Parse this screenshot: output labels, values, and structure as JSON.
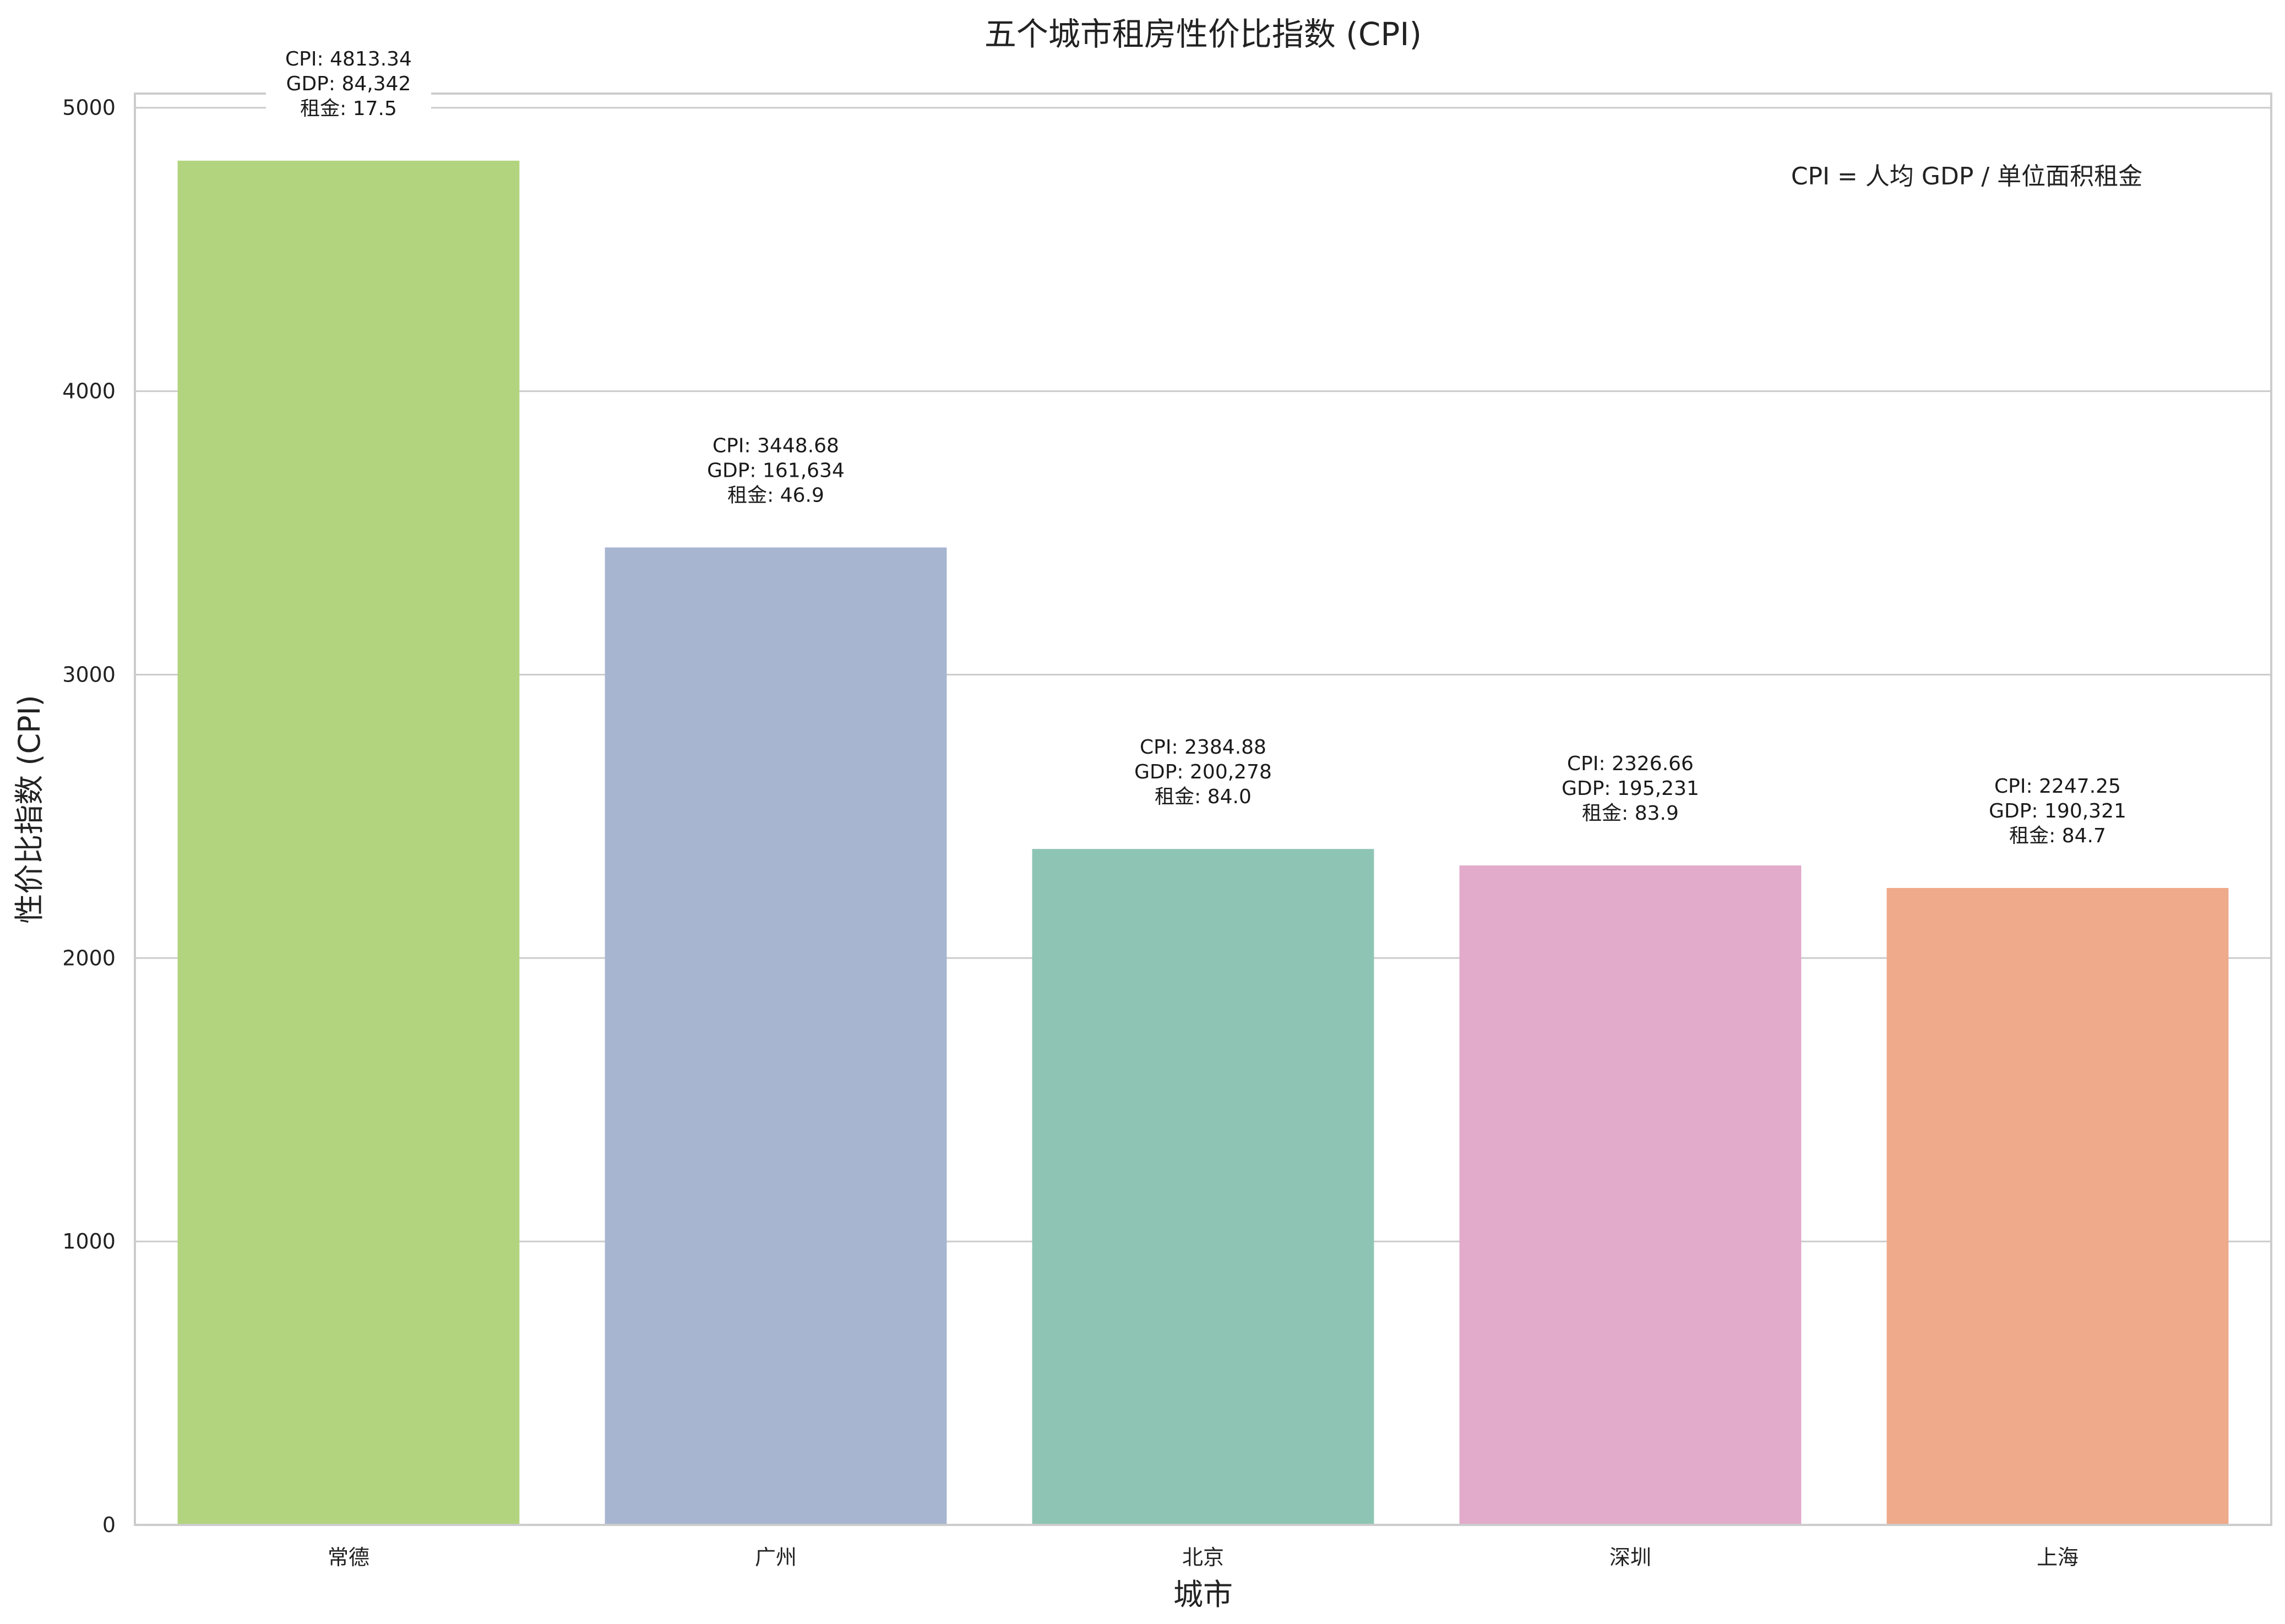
{
  "chart_data": {
    "type": "bar",
    "title": "五个城市租房性价比指数 (CPI)",
    "xlabel": "城市",
    "ylabel": "性价比指数 (CPI)",
    "ylim": [
      0,
      5050
    ],
    "yticks": [
      0,
      1000,
      2000,
      3000,
      4000,
      5000
    ],
    "grid": true,
    "annotation": "CPI = 人均 GDP / 单位面积租金",
    "categories": [
      "常德",
      "广州",
      "北京",
      "深圳",
      "上海"
    ],
    "values": [
      4813.34,
      3448.68,
      2384.88,
      2326.66,
      2247.25
    ],
    "colors": [
      "#b3d47f",
      "#a8b5d1",
      "#8ec4b3",
      "#e2aacb",
      "#eeaa8b"
    ],
    "bar_labels": [
      {
        "cpi": "CPI: 4813.34",
        "gdp": "GDP: 84,342",
        "rent": "租金: 17.5"
      },
      {
        "cpi": "CPI: 3448.68",
        "gdp": "GDP: 161,634",
        "rent": "租金: 46.9"
      },
      {
        "cpi": "CPI: 2384.88",
        "gdp": "GDP: 200,278",
        "rent": "租金: 84.0"
      },
      {
        "cpi": "CPI: 2326.66",
        "gdp": "GDP: 195,231",
        "rent": "租金: 83.9"
      },
      {
        "cpi": "CPI: 2247.25",
        "gdp": "GDP: 190,321",
        "rent": "租金: 84.7"
      }
    ]
  }
}
